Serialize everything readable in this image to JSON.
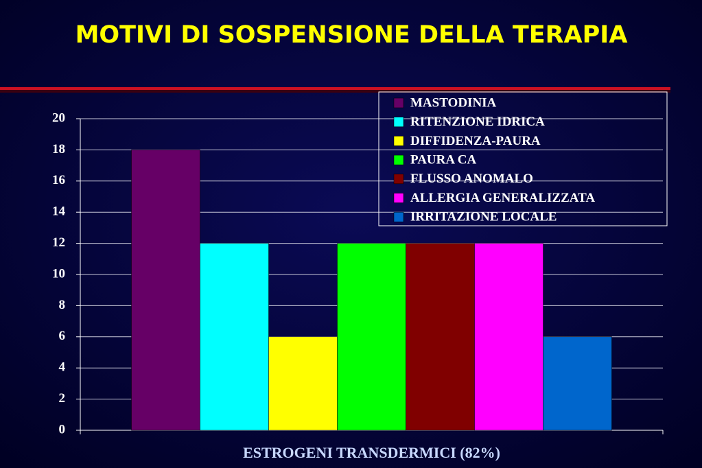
{
  "chart_data": {
    "type": "bar",
    "title": "MOTIVI DI SOSPENSIONE DELLA TERAPIA",
    "categories": [
      "ESTROGENI TRANSDERMICI (82%)"
    ],
    "series": [
      {
        "name": "MASTODINIA",
        "color": "#660066",
        "values": [
          18
        ]
      },
      {
        "name": "RITENZIONE IDRICA",
        "color": "#00ffff",
        "values": [
          12
        ]
      },
      {
        "name": "DIFFIDENZA-PAURA",
        "color": "#ffff00",
        "values": [
          6
        ]
      },
      {
        "name": "PAURA CA",
        "color": "#00ff00",
        "values": [
          12
        ]
      },
      {
        "name": "FLUSSO ANOMALO",
        "color": "#800000",
        "values": [
          12
        ]
      },
      {
        "name": "ALLERGIA GENERALIZZATA",
        "color": "#ff00ff",
        "values": [
          12
        ]
      },
      {
        "name": "IRRITAZIONE LOCALE",
        "color": "#0066cc",
        "values": [
          6
        ]
      }
    ],
    "ylim": [
      0,
      20
    ],
    "yticks": [
      0,
      2,
      4,
      6,
      8,
      10,
      12,
      14,
      16,
      18,
      20
    ],
    "grid": true,
    "legend": "top-right"
  }
}
